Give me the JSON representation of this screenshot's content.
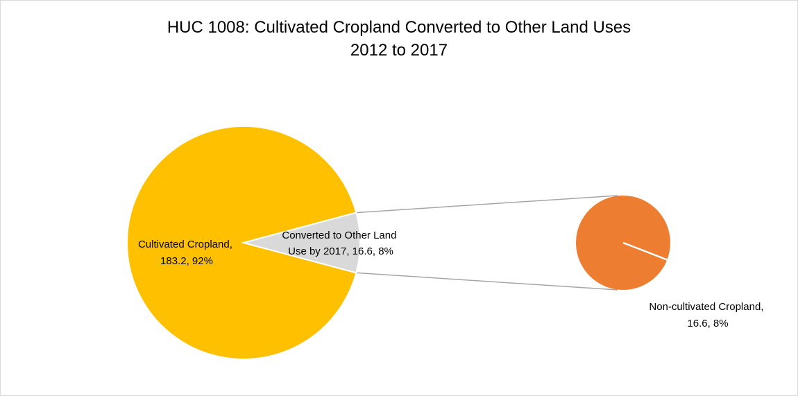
{
  "title": {
    "line1": "HUC 1008: Cultivated Cropland Converted to Other Land Uses",
    "line2": "2012 to 2017"
  },
  "chart_data": {
    "type": "pie",
    "subtype": "pie-of-pie",
    "primary": {
      "slices": [
        {
          "label_line1": "Cultivated Cropland,",
          "label_line2": "183.2, 92%",
          "value": 183.2,
          "percent": 92,
          "color": "#FFC000"
        },
        {
          "label_line1": "Converted to Other Land",
          "label_line2": "Use by 2017, 16.6, 8%",
          "value": 16.6,
          "percent": 8,
          "color": "#D9D9D9"
        }
      ]
    },
    "secondary": {
      "slices": [
        {
          "label_line1": "Non-cultivated Cropland,",
          "label_line2": "16.6, 8%",
          "value": 16.6,
          "percent": 8,
          "color": "#ED7D31"
        }
      ]
    },
    "connector_color": "#A6A6A6",
    "legend": "none"
  }
}
